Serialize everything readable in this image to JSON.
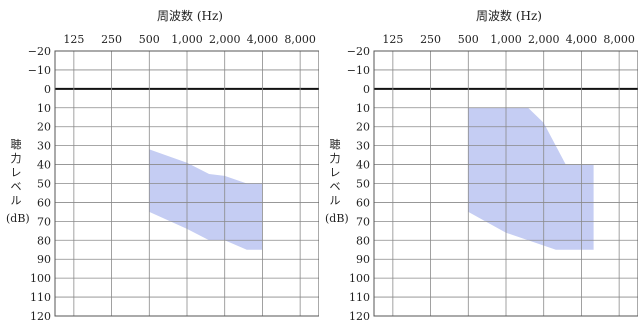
{
  "xlabel": "周波数 (Hz)",
  "ylabel_chars": [
    "聴",
    "力",
    "レ",
    "ベ",
    "ル"
  ],
  "yunit": "(dB)",
  "chart_data": [
    {
      "type": "area",
      "title": "",
      "xlabel": "周波数 (Hz)",
      "ylabel": "聴力レベル (dB)",
      "x_ticks": [
        "125",
        "250",
        "500",
        "1,000",
        "2,000",
        "4,000",
        "8,000"
      ],
      "y_ticks": [
        "−20",
        "−10",
        "0",
        "10",
        "20",
        "30",
        "40",
        "50",
        "60",
        "70",
        "80",
        "90",
        "100",
        "110",
        "120"
      ],
      "ylim": [
        -20,
        120
      ],
      "y_inverted": true,
      "x_scale": "log2",
      "band_color": "#c5cdf3",
      "band_upper": [
        [
          500,
          32
        ],
        [
          1000,
          39
        ],
        [
          1500,
          45
        ],
        [
          2000,
          46
        ],
        [
          3000,
          50
        ],
        [
          4000,
          50
        ]
      ],
      "band_lower": [
        [
          500,
          65
        ],
        [
          1000,
          74
        ],
        [
          1500,
          80
        ],
        [
          2000,
          80
        ],
        [
          3000,
          85
        ],
        [
          4000,
          85
        ]
      ]
    },
    {
      "type": "area",
      "title": "",
      "xlabel": "周波数 (Hz)",
      "ylabel": "聴力レベル (dB)",
      "x_ticks": [
        "125",
        "250",
        "500",
        "1,000",
        "2,000",
        "4,000",
        "8,000"
      ],
      "y_ticks": [
        "−20",
        "−10",
        "0",
        "10",
        "20",
        "30",
        "40",
        "50",
        "60",
        "70",
        "80",
        "90",
        "100",
        "110",
        "120"
      ],
      "ylim": [
        -20,
        120
      ],
      "y_inverted": true,
      "x_scale": "log2",
      "band_color": "#c5cdf3",
      "band_upper": [
        [
          500,
          10
        ],
        [
          1500,
          10
        ],
        [
          2000,
          18
        ],
        [
          3000,
          40
        ],
        [
          5000,
          40
        ]
      ],
      "band_lower": [
        [
          500,
          65
        ],
        [
          1000,
          76
        ],
        [
          1500,
          80
        ],
        [
          2500,
          85
        ],
        [
          5000,
          85
        ]
      ]
    }
  ]
}
